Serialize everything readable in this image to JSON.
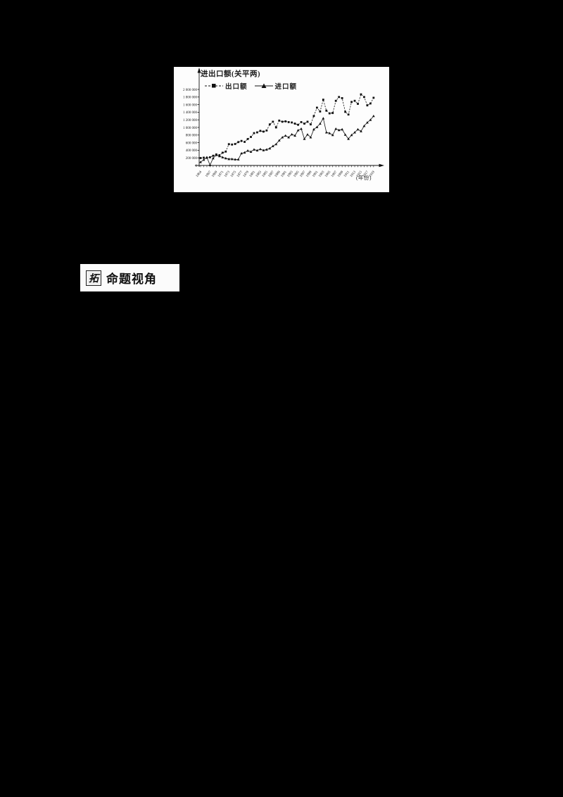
{
  "page": {
    "background": "#000000",
    "panel_background": "#fdfdfd",
    "ink": "#1a1a1a"
  },
  "callout": {
    "badge": "拓",
    "label": "命题视角"
  },
  "chart_data": {
    "type": "line",
    "title": "进出口额(关平两)",
    "xlabel": "(年份)",
    "ylim": [
      0,
      2000000
    ],
    "ytick_step": 200000,
    "ytick_labels_top_down": [
      "2 000 000",
      "1 800 000",
      "1 600 000",
      "1 400 000",
      "1 200 000",
      "1 000 000",
      "800 000",
      "600 000",
      "400 000",
      "200 000",
      "0"
    ],
    "x_start_year": 1864,
    "x_end_year": 1919,
    "xtick_labels": [
      "1864",
      "1867",
      "1869",
      "1871",
      "1873",
      "1875",
      "1877",
      "1879",
      "1881",
      "1883",
      "1885",
      "1887",
      "1889",
      "1891",
      "1893",
      "1895",
      "1897",
      "1899",
      "1901",
      "1903",
      "1905",
      "1907",
      "1909",
      "1911",
      "1913",
      "1915",
      "1917",
      "1919"
    ],
    "grid": false,
    "legend_position": "top-left",
    "series": [
      {
        "name": "出口额",
        "marker": "square",
        "line": "dashed",
        "color": "#111111",
        "values": [
          195000,
          205000,
          200000,
          215000,
          255000,
          290000,
          270000,
          335000,
          365000,
          560000,
          550000,
          565000,
          615000,
          645000,
          620000,
          695000,
          750000,
          850000,
          870000,
          910000,
          890000,
          920000,
          1080000,
          1150000,
          1000000,
          1180000,
          1150000,
          1160000,
          1140000,
          1130000,
          1100000,
          1070000,
          1140000,
          1100000,
          1150000,
          1080000,
          1300000,
          1520000,
          1420000,
          1730000,
          1440000,
          1370000,
          1380000,
          1700000,
          1800000,
          1770000,
          1410000,
          1340000,
          1670000,
          1700000,
          1620000,
          1870000,
          1800000,
          1580000,
          1630000,
          1780000
        ]
      },
      {
        "name": "进口额",
        "marker": "triangle",
        "line": "solid",
        "color": "#111111",
        "values": [
          90000,
          150000,
          215000,
          10000,
          190000,
          275000,
          245000,
          215000,
          190000,
          170000,
          170000,
          160000,
          160000,
          320000,
          340000,
          390000,
          360000,
          420000,
          395000,
          430000,
          400000,
          420000,
          450000,
          510000,
          560000,
          660000,
          740000,
          785000,
          740000,
          820000,
          785000,
          925000,
          965000,
          700000,
          815000,
          740000,
          950000,
          1010000,
          1100000,
          1240000,
          870000,
          850000,
          800000,
          965000,
          930000,
          950000,
          810000,
          700000,
          800000,
          870000,
          950000,
          900000,
          1040000,
          1130000,
          1200000,
          1300000
        ]
      }
    ]
  }
}
